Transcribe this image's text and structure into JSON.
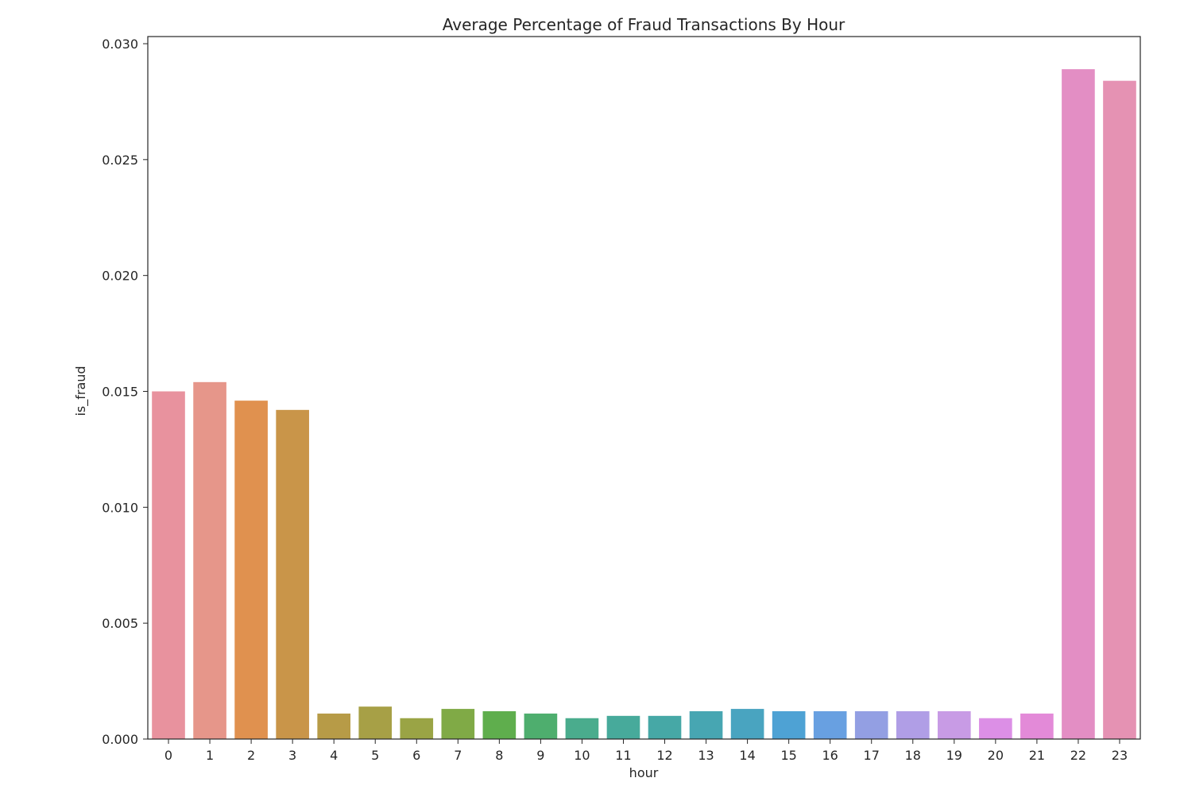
{
  "chart_data": {
    "type": "bar",
    "title": "Average Percentage of Fraud Transactions By Hour",
    "xlabel": "hour",
    "ylabel": "is_fraud",
    "ylim": [
      0,
      0.0303
    ],
    "yticks": [
      "0.000",
      "0.005",
      "0.010",
      "0.015",
      "0.020",
      "0.025",
      "0.030"
    ],
    "grid": false,
    "categories": [
      "0",
      "1",
      "2",
      "3",
      "4",
      "5",
      "6",
      "7",
      "8",
      "9",
      "10",
      "11",
      "12",
      "13",
      "14",
      "15",
      "16",
      "17",
      "18",
      "19",
      "20",
      "21",
      "22",
      "23"
    ],
    "values": [
      0.015,
      0.0154,
      0.0146,
      0.0142,
      0.0011,
      0.0014,
      0.0009,
      0.0013,
      0.0012,
      0.0011,
      0.0009,
      0.001,
      0.001,
      0.0012,
      0.0013,
      0.0012,
      0.0012,
      0.0012,
      0.0012,
      0.0012,
      0.0009,
      0.0011,
      0.0289,
      0.0284
    ],
    "colors": [
      "#e8929e",
      "#e6968a",
      "#e0914f",
      "#c99549",
      "#b79b47",
      "#a7a046",
      "#9aa445",
      "#80aa46",
      "#5fae4d",
      "#4eae6e",
      "#4aac8d",
      "#47aa9b",
      "#46a8a6",
      "#47a6b2",
      "#49a4c0",
      "#4ea2d4",
      "#68a0e1",
      "#939fe3",
      "#b09ee6",
      "#c89be5",
      "#dc8fe6",
      "#e38ad8",
      "#e38ec4",
      "#e592b3"
    ]
  }
}
